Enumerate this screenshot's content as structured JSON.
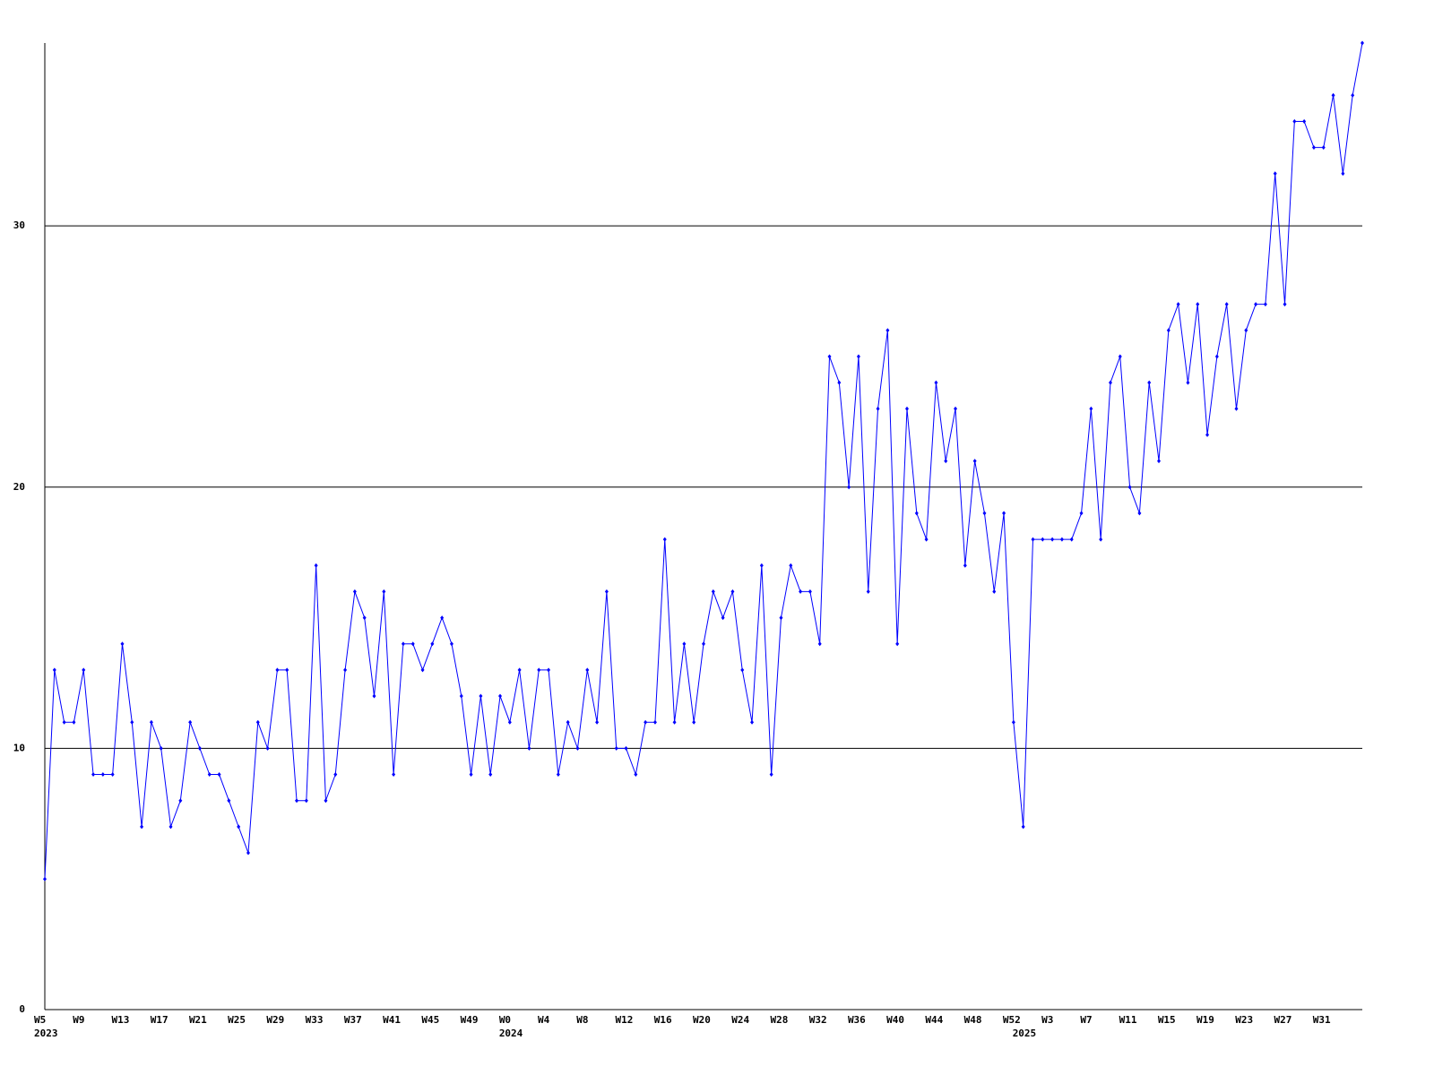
{
  "chart_data": {
    "type": "line",
    "color": "#0000ff",
    "grid": true,
    "grid_color": "#000000",
    "ylim": [
      0,
      37
    ],
    "yticks": [
      0,
      10,
      20,
      30
    ],
    "categories": [
      "W5",
      null,
      null,
      null,
      "W9",
      null,
      null,
      null,
      "W13",
      null,
      null,
      null,
      "W17",
      null,
      null,
      null,
      "W21",
      null,
      null,
      null,
      "W25",
      null,
      null,
      null,
      "W29",
      null,
      null,
      null,
      "W33",
      null,
      null,
      null,
      "W37",
      null,
      null,
      null,
      "W41",
      null,
      null,
      null,
      "W45",
      null,
      null,
      null,
      "W49",
      null,
      null,
      null,
      "W0",
      null,
      null,
      null,
      "W4",
      null,
      null,
      null,
      "W8",
      null,
      null,
      null,
      "W12",
      null,
      null,
      null,
      "W16",
      null,
      null,
      null,
      "W20",
      null,
      null,
      null,
      "W24",
      null,
      null,
      null,
      "W28",
      null,
      null,
      null,
      "W32",
      null,
      null,
      null,
      "W36",
      null,
      null,
      null,
      "W40",
      null,
      null,
      null,
      "W44",
      null,
      null,
      null,
      "W48",
      null,
      null,
      null,
      "W52",
      null,
      null,
      null,
      "W3",
      null,
      null,
      null,
      "W7",
      null,
      null,
      null,
      "W11",
      null,
      null,
      null,
      "W15",
      null,
      null,
      null,
      "W19",
      null,
      null,
      null,
      "W23",
      null,
      null,
      null,
      "W27",
      null,
      null,
      null,
      "W31",
      null,
      null,
      null,
      null
    ],
    "values": [
      5,
      13,
      11,
      11,
      13,
      9,
      9,
      9,
      14,
      11,
      7,
      11,
      10,
      7,
      8,
      11,
      10,
      9,
      9,
      8,
      7,
      6,
      11,
      10,
      13,
      13,
      8,
      8,
      17,
      8,
      9,
      13,
      16,
      15,
      12,
      16,
      9,
      14,
      14,
      13,
      14,
      15,
      14,
      12,
      9,
      12,
      9,
      12,
      11,
      13,
      10,
      13,
      13,
      9,
      11,
      10,
      13,
      11,
      16,
      10,
      10,
      9,
      11,
      11,
      18,
      11,
      14,
      11,
      14,
      16,
      15,
      16,
      13,
      11,
      17,
      9,
      15,
      17,
      16,
      16,
      14,
      25,
      24,
      20,
      25,
      16,
      23,
      26,
      14,
      23,
      19,
      18,
      24,
      21,
      23,
      17,
      21,
      19,
      16,
      19,
      11,
      7,
      18,
      18,
      18,
      18,
      18,
      19,
      23,
      18,
      24,
      25,
      20,
      19,
      24,
      21,
      26,
      27,
      24,
      27,
      22,
      25,
      27,
      23,
      26,
      27,
      27,
      32,
      27,
      34,
      34,
      33,
      33,
      35,
      32,
      35,
      37
    ],
    "years": [
      {
        "category_index": 0,
        "label": "2023"
      },
      {
        "category_index": 48,
        "label": "2024"
      },
      {
        "category_index": 101,
        "label": "2025"
      }
    ]
  }
}
